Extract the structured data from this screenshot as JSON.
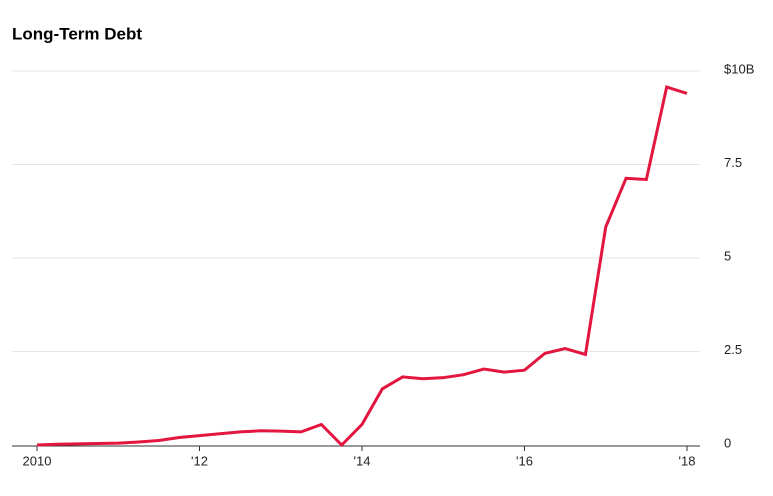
{
  "chart_data": {
    "type": "line",
    "title": "Long-Term Debt",
    "x": [
      2010,
      2010.25,
      2010.5,
      2010.75,
      2011,
      2011.25,
      2011.5,
      2011.75,
      2012,
      2012.25,
      2012.5,
      2012.75,
      2013,
      2013.25,
      2013.5,
      2013.75,
      2014,
      2014.25,
      2014.5,
      2014.75,
      2015,
      2015.25,
      2015.5,
      2015.75,
      2016,
      2016.25,
      2016.5,
      2016.75,
      2017,
      2017.25,
      2017.5,
      2017.75,
      2018
    ],
    "series": [
      {
        "name": "Long-Term Debt",
        "color": "#e3163f",
        "values": [
          0,
          0.02,
          0.03,
          0.04,
          0.05,
          0.08,
          0.12,
          0.2,
          0.25,
          0.3,
          0.35,
          0.38,
          0.37,
          0.35,
          0.55,
          0,
          0.55,
          1.5,
          1.82,
          1.77,
          1.8,
          1.88,
          2.03,
          1.95,
          2.0,
          2.45,
          2.58,
          2.42,
          5.83,
          7.13,
          7.1,
          9.57,
          9.4
        ]
      }
    ],
    "xlim": [
      2010,
      2018.1
    ],
    "xticks": [
      {
        "value": 2010,
        "label": "2010"
      },
      {
        "value": 2012,
        "label": "'12"
      },
      {
        "value": 2014,
        "label": "'14"
      },
      {
        "value": 2016,
        "label": "'16"
      },
      {
        "value": 2018,
        "label": "'18"
      }
    ],
    "ylim": [
      0,
      10
    ],
    "yticks": [
      0,
      2.5,
      5,
      7.5,
      {
        "value": 10,
        "label": "$10B"
      }
    ],
    "grid": true
  }
}
